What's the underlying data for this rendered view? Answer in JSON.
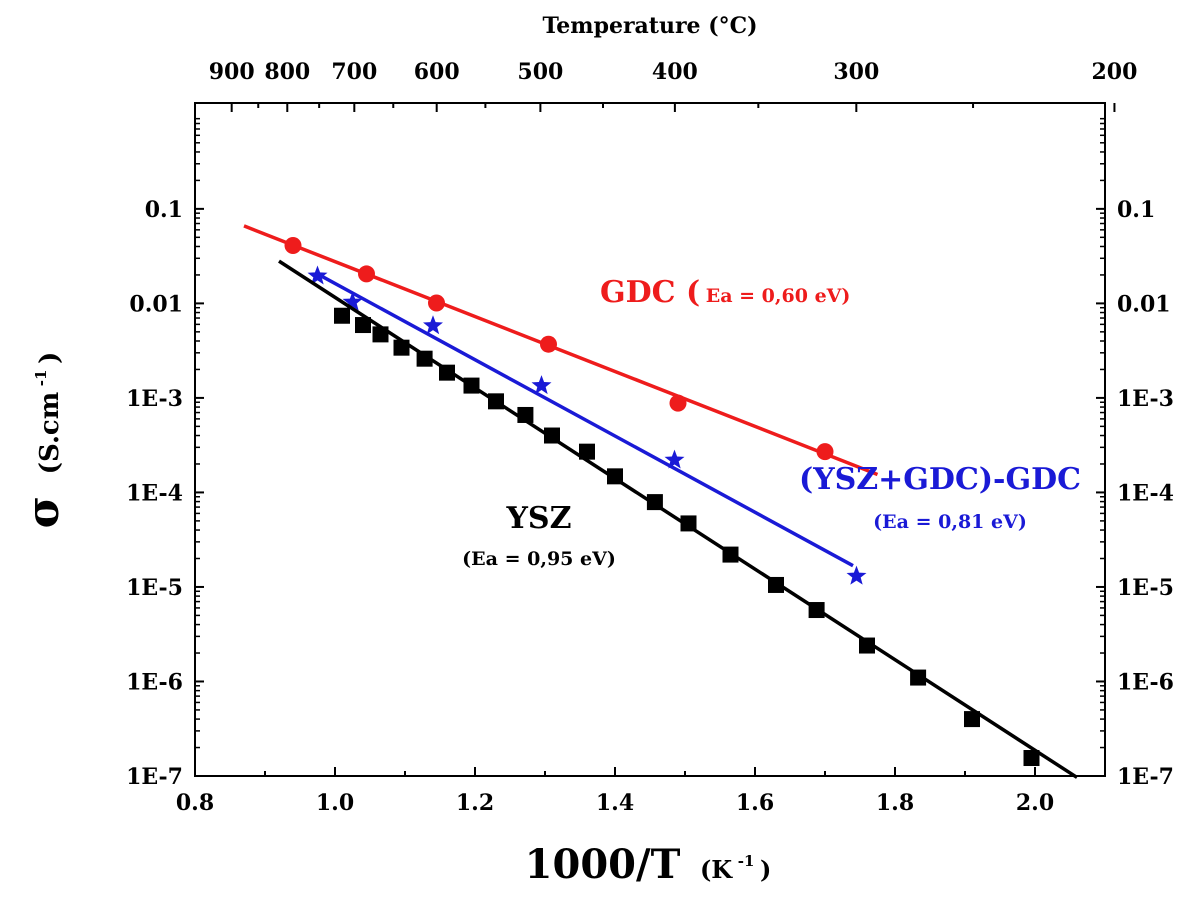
{
  "chart_data": {
    "type": "scatter",
    "title": "",
    "xlabel": "1000/T",
    "xlabel_unit_base": "(K",
    "xlabel_unit_sup": "-1",
    "xlabel_unit_end": ")",
    "ylabel_symbol": "σ",
    "ylabel_unit_base": "(S.cm",
    "ylabel_unit_sup": "-1",
    "ylabel_unit_end": ")",
    "top_axis_title": "Temperature (°C)",
    "xlim": [
      0.8,
      2.1
    ],
    "ylim_log10": [
      -7,
      0.12
    ],
    "yscale": "log",
    "grid": false,
    "x_ticks": [
      0.8,
      1.0,
      1.2,
      1.4,
      1.6,
      1.8,
      2.0
    ],
    "x_tick_labels": [
      "0.8",
      "1.0",
      "1.2",
      "1.4",
      "1.6",
      "1.8",
      "2.0"
    ],
    "y_ticks_log10": [
      -1,
      -2,
      -3,
      -4,
      -5,
      -6,
      -7
    ],
    "y_tick_labels": [
      "0.1",
      "0.01",
      "1E-3",
      "1E-4",
      "1E-5",
      "1E-6",
      "1E-7"
    ],
    "top_ticks_c": [
      900,
      800,
      700,
      600,
      500,
      400,
      300,
      200
    ],
    "top_tick_labels": [
      "900",
      "800",
      "700",
      "600",
      "500",
      "400",
      "300",
      "200"
    ],
    "series": [
      {
        "name": "GDC",
        "color": "#ee1c1c",
        "marker": "circle",
        "points": [
          [
            0.94,
            0.041
          ],
          [
            1.045,
            0.0205
          ],
          [
            1.145,
            0.0101
          ],
          [
            1.305,
            0.0037
          ],
          [
            1.49,
            0.00088
          ],
          [
            1.7,
            0.00027
          ]
        ],
        "fit": [
          [
            0.87,
            0.066
          ],
          [
            1.775,
            0.000155
          ]
        ]
      },
      {
        "name": "(YSZ+GDC)-GDC",
        "color": "#1a1ad6",
        "marker": "star",
        "points": [
          [
            0.975,
            0.0195
          ],
          [
            1.025,
            0.0103
          ],
          [
            1.14,
            0.0058
          ],
          [
            1.295,
            0.00135
          ],
          [
            1.485,
            0.00022
          ],
          [
            1.745,
            1.3e-05
          ]
        ],
        "fit": [
          [
            0.975,
            0.0205
          ],
          [
            1.74,
            1.68e-05
          ]
        ]
      },
      {
        "name": "YSZ",
        "color": "#000000",
        "marker": "square",
        "points": [
          [
            1.01,
            0.0074
          ],
          [
            1.04,
            0.0059
          ],
          [
            1.065,
            0.0047
          ],
          [
            1.095,
            0.0034
          ],
          [
            1.128,
            0.0026
          ],
          [
            1.16,
            0.00185
          ],
          [
            1.195,
            0.00135
          ],
          [
            1.23,
            0.00092
          ],
          [
            1.272,
            0.00066
          ],
          [
            1.31,
            0.0004
          ],
          [
            1.36,
            0.00027
          ],
          [
            1.4,
            0.000148
          ],
          [
            1.457,
            7.9e-05
          ],
          [
            1.505,
            4.7e-05
          ],
          [
            1.565,
            2.2e-05
          ],
          [
            1.63,
            1.05e-05
          ],
          [
            1.688,
            5.7e-06
          ],
          [
            1.76,
            2.4e-06
          ],
          [
            1.833,
            1.1e-06
          ],
          [
            1.91,
            4e-07
          ],
          [
            1.995,
            1.55e-07
          ]
        ],
        "fit": [
          [
            0.92,
            0.028
          ],
          [
            2.06,
            9.65e-08
          ]
        ]
      }
    ],
    "annotations": {
      "gdc_name": "GDC (",
      "gdc_ea": "Ea = 0,60 eV)",
      "composite_name": "(YSZ+GDC)-GDC",
      "composite_ea": "(Ea = 0,81 eV)",
      "ysz_name": "YSZ",
      "ysz_ea": "(Ea = 0,95 eV)"
    }
  }
}
